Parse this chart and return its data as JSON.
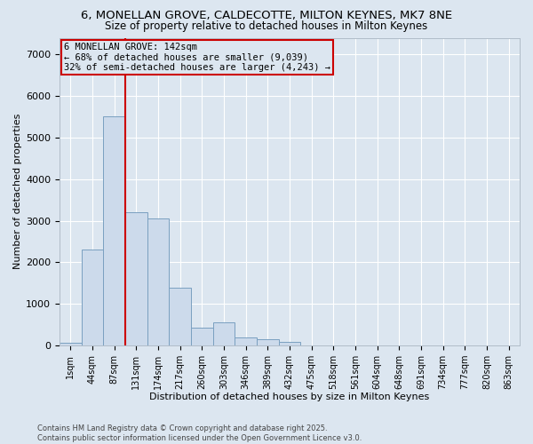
{
  "title_line1": "6, MONELLAN GROVE, CALDECOTTE, MILTON KEYNES, MK7 8NE",
  "title_line2": "Size of property relative to detached houses in Milton Keynes",
  "xlabel": "Distribution of detached houses by size in Milton Keynes",
  "ylabel": "Number of detached properties",
  "bar_color": "#ccdaeb",
  "bar_edgecolor": "#7aa0c0",
  "fig_facecolor": "#dce6f0",
  "ax_facecolor": "#dce6f0",
  "grid_color": "#ffffff",
  "categories": [
    "1sqm",
    "44sqm",
    "87sqm",
    "131sqm",
    "174sqm",
    "217sqm",
    "260sqm",
    "303sqm",
    "346sqm",
    "389sqm",
    "432sqm",
    "475sqm",
    "518sqm",
    "561sqm",
    "604sqm",
    "648sqm",
    "691sqm",
    "734sqm",
    "777sqm",
    "820sqm",
    "863sqm"
  ],
  "values": [
    60,
    2300,
    5500,
    3200,
    3050,
    1400,
    430,
    550,
    200,
    150,
    80,
    0,
    0,
    0,
    0,
    0,
    0,
    0,
    0,
    0,
    0
  ],
  "ylim": [
    0,
    7400
  ],
  "yticks": [
    0,
    1000,
    2000,
    3000,
    4000,
    5000,
    6000,
    7000
  ],
  "vline_color": "#cc0000",
  "annotation_title": "6 MONELLAN GROVE: 142sqm",
  "annotation_line1": "← 68% of detached houses are smaller (9,039)",
  "annotation_line2": "32% of semi-detached houses are larger (4,243) →",
  "footer_line1": "Contains HM Land Registry data © Crown copyright and database right 2025.",
  "footer_line2": "Contains public sector information licensed under the Open Government Licence v3.0."
}
